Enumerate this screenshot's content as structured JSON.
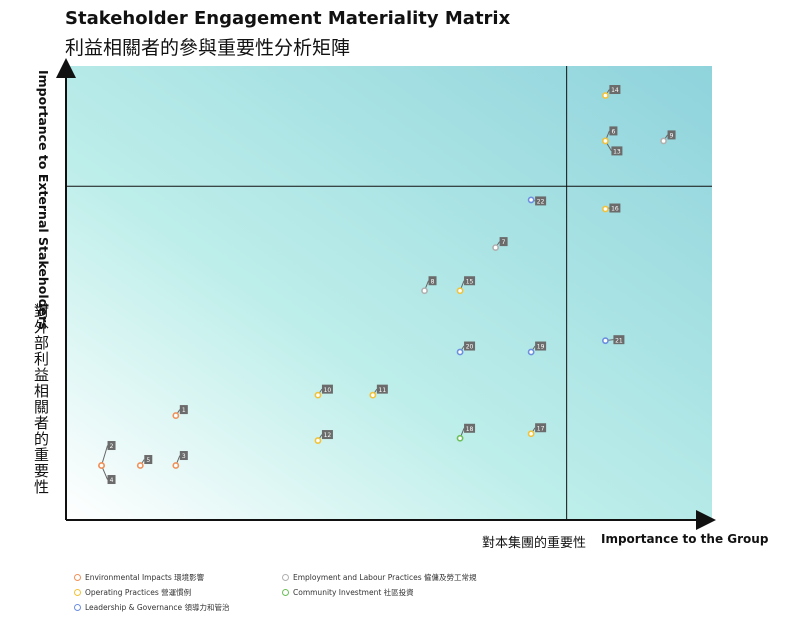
{
  "title": "Stakeholder Engagement Materiality Matrix",
  "subtitle": "利益相關者的參與重要性分析矩陣",
  "chart_data": {
    "type": "scatter",
    "xlabel": "Importance to the Group",
    "xlabel_zh": "對本集團的重要性",
    "ylabel": "Importance to External Stakeholders",
    "ylabel_zh": "對外部利益相關者的重要性",
    "xlim": [
      0,
      100
    ],
    "ylim": [
      0,
      100
    ],
    "quadrant_lines": {
      "x": 77.5,
      "y": 73.5
    },
    "grid": false,
    "legend_position": "bottom",
    "colors": {
      "environmental": "#f0915a",
      "employment": "#b0b0b0",
      "operating": "#f2c23a",
      "community": "#6cbf5a",
      "leadership": "#6d8fe0"
    },
    "series": [
      {
        "key": "environmental",
        "name": "Environmental Impacts 環境影響",
        "points": [
          {
            "label": "1",
            "x": 17,
            "y": 23
          },
          {
            "label": "2",
            "x": 5.5,
            "y": 12
          },
          {
            "label": "3",
            "x": 17,
            "y": 12
          },
          {
            "label": "4",
            "x": 5.5,
            "y": 12
          },
          {
            "label": "5",
            "x": 11.5,
            "y": 12
          }
        ]
      },
      {
        "key": "employment",
        "name": "Employment and Labour Practices 僱傭及勞工常規",
        "points": [
          {
            "label": "6",
            "x": 83.5,
            "y": 83.5
          },
          {
            "label": "7",
            "x": 66.5,
            "y": 60
          },
          {
            "label": "8",
            "x": 55.5,
            "y": 50.5
          },
          {
            "label": "9",
            "x": 92.5,
            "y": 83.5
          }
        ]
      },
      {
        "key": "operating",
        "name": "Operating Practices 營運慣例",
        "points": [
          {
            "label": "10",
            "x": 39,
            "y": 27.5
          },
          {
            "label": "11",
            "x": 47.5,
            "y": 27.5
          },
          {
            "label": "12",
            "x": 39,
            "y": 17.5
          },
          {
            "label": "13",
            "x": 83.5,
            "y": 83.5
          },
          {
            "label": "14",
            "x": 83.5,
            "y": 93.5
          },
          {
            "label": "15",
            "x": 61,
            "y": 50.5
          },
          {
            "label": "16",
            "x": 83.5,
            "y": 68.5
          },
          {
            "label": "17",
            "x": 72,
            "y": 19
          }
        ]
      },
      {
        "key": "community",
        "name": "Community Investment 社區投資",
        "points": [
          {
            "label": "18",
            "x": 61,
            "y": 18
          }
        ]
      },
      {
        "key": "leadership",
        "name": "Leadership & Governance 領導力和管治",
        "points": [
          {
            "label": "19",
            "x": 72,
            "y": 37
          },
          {
            "label": "20",
            "x": 61,
            "y": 37
          },
          {
            "label": "21",
            "x": 83.5,
            "y": 39.5
          },
          {
            "label": "22",
            "x": 72,
            "y": 70.5
          }
        ]
      }
    ]
  }
}
